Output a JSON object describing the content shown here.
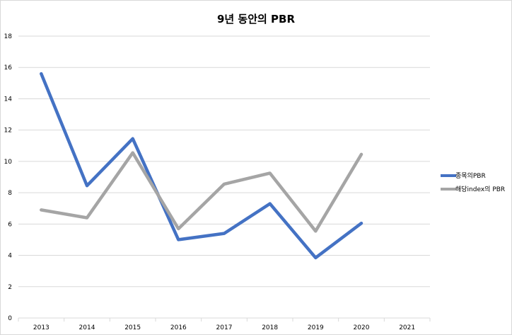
{
  "chart_data": {
    "type": "line",
    "title": "9년 동안의 PBR",
    "xlabel": "",
    "ylabel": "",
    "categories": [
      "2013",
      "2014",
      "2015",
      "2016",
      "2017",
      "2018",
      "2019",
      "2020",
      "2021"
    ],
    "ylim": [
      0,
      18
    ],
    "ytick_step": 2,
    "grid": true,
    "legend_position": "right",
    "series": [
      {
        "name": "종목의PBR",
        "color": "#4472C4",
        "values": [
          15.6,
          8.45,
          11.45,
          5.0,
          5.4,
          7.3,
          3.85,
          6.05,
          null
        ]
      },
      {
        "name": "해당index의 PBR",
        "color": "#A5A5A5",
        "values": [
          6.9,
          6.4,
          10.55,
          5.7,
          8.55,
          9.25,
          5.55,
          10.45,
          null
        ]
      }
    ]
  }
}
